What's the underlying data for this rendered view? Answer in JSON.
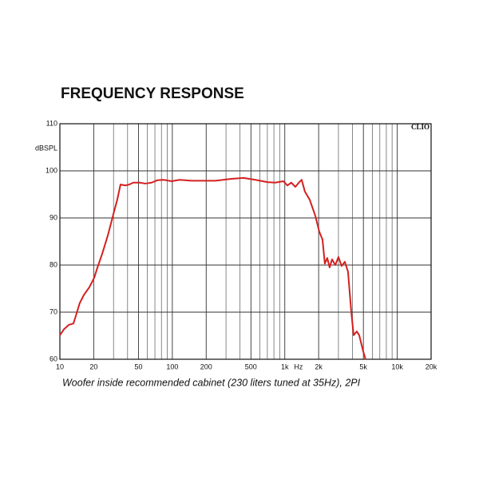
{
  "chart_data": {
    "type": "line",
    "title": "FREQUENCY RESPONSE",
    "caption": "Woofer inside recommended cabinet (230 liters tuned at 35Hz), 2PI",
    "y_label": "dBSPL",
    "x_label": "Hz",
    "brand": "CLIO",
    "xscale": "log",
    "grid": true,
    "xlim": [
      10,
      20000
    ],
    "ylim": [
      60,
      110
    ],
    "xticks": [
      10,
      20,
      50,
      100,
      200,
      500,
      {
        "value": 1000,
        "label": "1k"
      },
      {
        "value": 2000,
        "label": "2k"
      },
      {
        "value": 5000,
        "label": "5k"
      },
      {
        "value": 10000,
        "label": "10k"
      },
      {
        "value": 20000,
        "label": "20k"
      }
    ],
    "xgrid": [
      30,
      40,
      60,
      70,
      80,
      90,
      300,
      400,
      600,
      700,
      800,
      900,
      3000,
      4000,
      6000,
      7000,
      8000,
      9000
    ],
    "yticks": [
      60,
      70,
      80,
      90,
      100,
      110
    ],
    "series": [
      {
        "color": "#d42020",
        "x": [
          10,
          10.9,
          12,
          13.2,
          13.9,
          15,
          16.3,
          18.3,
          20.2,
          21.6,
          23.8,
          26.7,
          29.9,
          32.4,
          34.6,
          38.2,
          41.4,
          45,
          51.3,
          57.5,
          65.5,
          73.4,
          83.7,
          98.6,
          116,
          148,
          190,
          242,
          336,
          429,
          548,
          700,
          824,
          971,
          1054,
          1143,
          1241,
          1346,
          1413,
          1510,
          1664,
          1866,
          2026,
          2164,
          2271,
          2386,
          2505,
          2632,
          2811,
          3000,
          3201,
          3420,
          3649,
          3896,
          4093,
          4368,
          4590,
          4977,
          5224
        ],
        "values": [
          65.1,
          66.4,
          67.3,
          67.6,
          69.3,
          71.9,
          73.6,
          75.3,
          77.3,
          79.5,
          82.4,
          86.3,
          90.8,
          93.9,
          97.1,
          96.9,
          97.1,
          97.5,
          97.5,
          97.3,
          97.5,
          98,
          98.1,
          97.8,
          98.1,
          97.9,
          97.9,
          97.9,
          98.3,
          98.5,
          98.1,
          97.6,
          97.5,
          97.8,
          96.9,
          97.5,
          96.6,
          97.6,
          98.1,
          95.6,
          93.9,
          90.5,
          87.1,
          85.4,
          80.3,
          81.5,
          79.5,
          81.2,
          80,
          81.7,
          79.8,
          80.7,
          78.6,
          70.2,
          65.1,
          65.9,
          65.1,
          61.7,
          60
        ]
      }
    ]
  }
}
